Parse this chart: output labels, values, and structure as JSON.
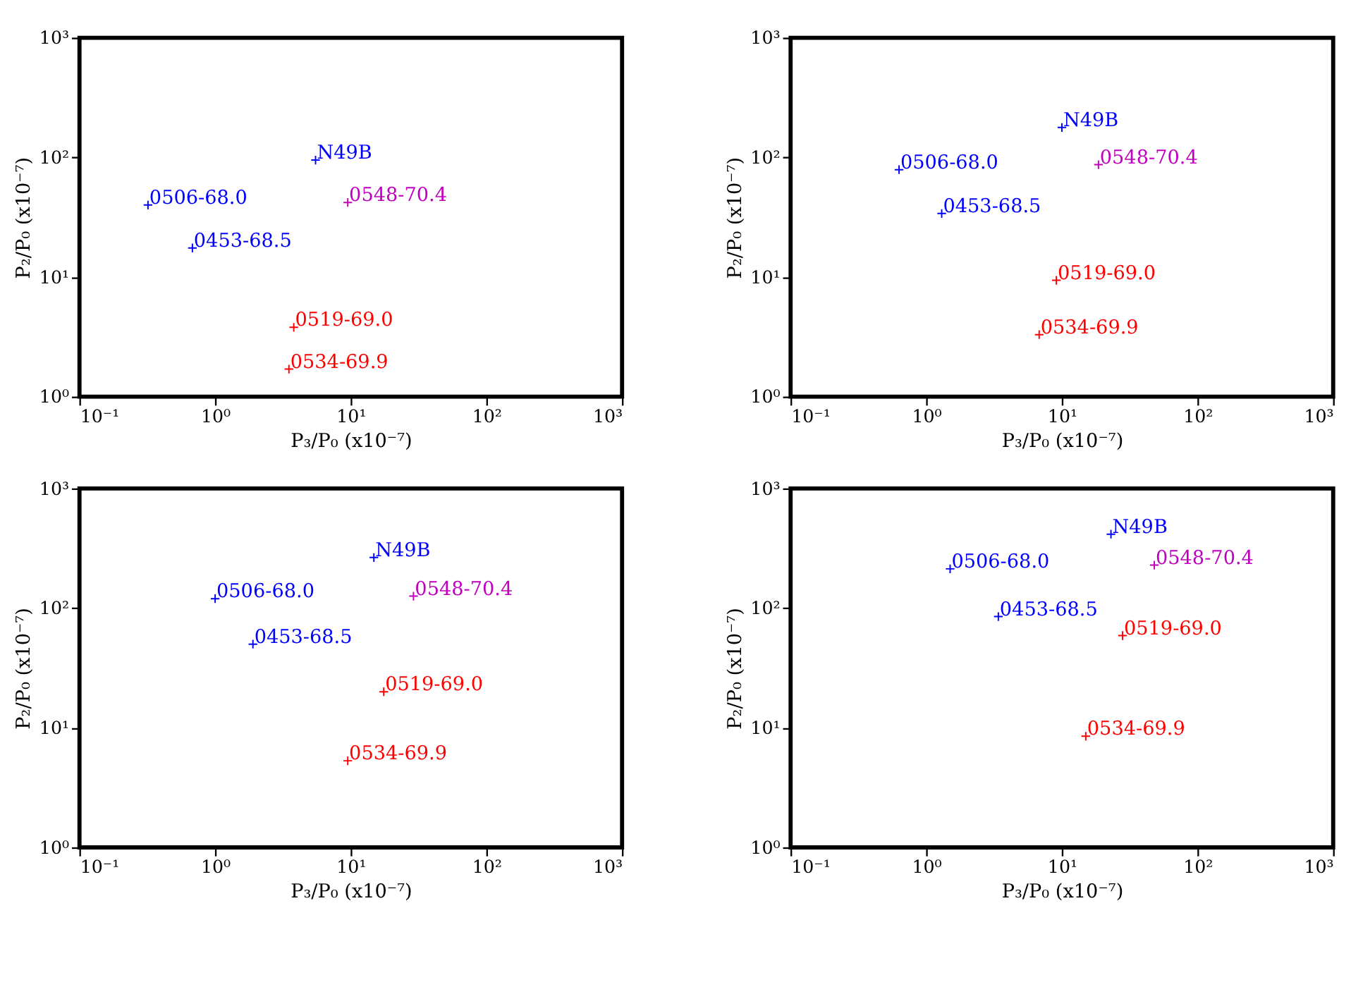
{
  "chart_data": [
    {
      "type": "scatter",
      "log": "xy",
      "grid": false,
      "marker": "cross",
      "xlabel": "P₃/P₀ (x10⁻⁷)",
      "ylabel": "P₂/P₀ (x10⁻⁷)",
      "xlim": [
        0.1,
        1000
      ],
      "ylim": [
        1,
        1000
      ],
      "xticks": [
        {
          "value": 0.1,
          "label": "10⁻¹"
        },
        {
          "value": 1,
          "label": "10⁰"
        },
        {
          "value": 10,
          "label": "10¹"
        },
        {
          "value": 100,
          "label": "10²"
        },
        {
          "value": 1000,
          "label": "10³"
        }
      ],
      "yticks": [
        {
          "value": 1,
          "label": "10⁰"
        },
        {
          "value": 10,
          "label": "10¹"
        },
        {
          "value": 100,
          "label": "10²"
        },
        {
          "value": 1000,
          "label": "10³"
        }
      ],
      "x": [
        5.5,
        0.32,
        0.68,
        9.5,
        3.8,
        3.5
      ],
      "values": [
        95,
        40,
        17.5,
        42,
        3.8,
        1.7
      ],
      "colors": [
        "#0000ff",
        "#0000ff",
        "#0000ff",
        "#bf00bf",
        "#ff0000",
        "#ff0000"
      ],
      "annotations": [
        {
          "text": "N49B",
          "x": 5.5,
          "y": 95
        },
        {
          "text": "0506-68.0",
          "x": 0.32,
          "y": 40
        },
        {
          "text": "0453-68.5",
          "x": 0.68,
          "y": 17.5
        },
        {
          "text": "0548-70.4",
          "x": 9.5,
          "y": 42
        },
        {
          "text": "0519-69.0",
          "x": 3.8,
          "y": 3.8
        },
        {
          "text": "0534-69.9",
          "x": 3.5,
          "y": 1.7
        }
      ]
    },
    {
      "type": "scatter",
      "log": "xy",
      "grid": false,
      "marker": "cross",
      "xlabel": "P₃/P₀ (x10⁻⁷)",
      "ylabel": "P₂/P₀ (x10⁻⁷)",
      "xlim": [
        0.1,
        1000
      ],
      "ylim": [
        1,
        1000
      ],
      "xticks": [
        {
          "value": 0.1,
          "label": "10⁻¹"
        },
        {
          "value": 1,
          "label": "10⁰"
        },
        {
          "value": 10,
          "label": "10¹"
        },
        {
          "value": 100,
          "label": "10²"
        },
        {
          "value": 1000,
          "label": "10³"
        }
      ],
      "yticks": [
        {
          "value": 1,
          "label": "10⁰"
        },
        {
          "value": 10,
          "label": "10¹"
        },
        {
          "value": 100,
          "label": "10²"
        },
        {
          "value": 1000,
          "label": "10³"
        }
      ],
      "x": [
        10,
        0.63,
        1.3,
        18.6,
        9.1,
        6.8
      ],
      "values": [
        178,
        79,
        34,
        87,
        9.4,
        3.3
      ],
      "colors": [
        "#0000ff",
        "#0000ff",
        "#0000ff",
        "#bf00bf",
        "#ff0000",
        "#ff0000"
      ],
      "annotations": [
        {
          "text": "N49B",
          "x": 10,
          "y": 178
        },
        {
          "text": "0506-68.0",
          "x": 0.63,
          "y": 79
        },
        {
          "text": "0453-68.5",
          "x": 1.3,
          "y": 34
        },
        {
          "text": "0548-70.4",
          "x": 18.6,
          "y": 87
        },
        {
          "text": "0519-69.0",
          "x": 9.1,
          "y": 9.4
        },
        {
          "text": "0534-69.9",
          "x": 6.8,
          "y": 3.3
        }
      ]
    },
    {
      "type": "scatter",
      "log": "xy",
      "grid": false,
      "marker": "cross",
      "xlabel": "P₃/P₀ (x10⁻⁷)",
      "ylabel": "P₂/P₀ (x10⁻⁷)",
      "xlim": [
        0.1,
        1000
      ],
      "ylim": [
        1,
        1000
      ],
      "xticks": [
        {
          "value": 0.1,
          "label": "10⁻¹"
        },
        {
          "value": 1,
          "label": "10⁰"
        },
        {
          "value": 10,
          "label": "10¹"
        },
        {
          "value": 100,
          "label": "10²"
        },
        {
          "value": 1000,
          "label": "10³"
        }
      ],
      "yticks": [
        {
          "value": 1,
          "label": "10⁰"
        },
        {
          "value": 10,
          "label": "10¹"
        },
        {
          "value": 100,
          "label": "10²"
        },
        {
          "value": 1000,
          "label": "10³"
        }
      ],
      "x": [
        14.8,
        1.0,
        1.9,
        29,
        17.5,
        9.5
      ],
      "values": [
        265,
        120,
        50,
        126,
        20,
        5.3
      ],
      "colors": [
        "#0000ff",
        "#0000ff",
        "#0000ff",
        "#bf00bf",
        "#ff0000",
        "#ff0000"
      ],
      "annotations": [
        {
          "text": "N49B",
          "x": 14.8,
          "y": 265
        },
        {
          "text": "0506-68.0",
          "x": 1.0,
          "y": 120
        },
        {
          "text": "0453-68.5",
          "x": 1.9,
          "y": 50
        },
        {
          "text": "0548-70.4",
          "x": 29,
          "y": 126
        },
        {
          "text": "0519-69.0",
          "x": 17.5,
          "y": 20
        },
        {
          "text": "0534-69.9",
          "x": 9.5,
          "y": 5.3
        }
      ]
    },
    {
      "type": "scatter",
      "log": "xy",
      "grid": false,
      "marker": "cross",
      "xlabel": "P₃/P₀ (x10⁻⁷)",
      "ylabel": "P₂/P₀ (x10⁻⁷)",
      "xlim": [
        0.1,
        1000
      ],
      "ylim": [
        1,
        1000
      ],
      "xticks": [
        {
          "value": 0.1,
          "label": "10⁻¹"
        },
        {
          "value": 1,
          "label": "10⁰"
        },
        {
          "value": 10,
          "label": "10¹"
        },
        {
          "value": 100,
          "label": "10²"
        },
        {
          "value": 1000,
          "label": "10³"
        }
      ],
      "yticks": [
        {
          "value": 1,
          "label": "10⁰"
        },
        {
          "value": 10,
          "label": "10¹"
        },
        {
          "value": 100,
          "label": "10²"
        },
        {
          "value": 1000,
          "label": "10³"
        }
      ],
      "x": [
        23,
        1.5,
        3.4,
        48,
        28,
        15
      ],
      "values": [
        415,
        213,
        85,
        229,
        59,
        8.5
      ],
      "colors": [
        "#0000ff",
        "#0000ff",
        "#0000ff",
        "#bf00bf",
        "#ff0000",
        "#ff0000"
      ],
      "annotations": [
        {
          "text": "N49B",
          "x": 23,
          "y": 415
        },
        {
          "text": "0506-68.0",
          "x": 1.5,
          "y": 213
        },
        {
          "text": "0453-68.5",
          "x": 3.4,
          "y": 85
        },
        {
          "text": "0548-70.4",
          "x": 48,
          "y": 229
        },
        {
          "text": "0519-69.0",
          "x": 28,
          "y": 59
        },
        {
          "text": "0534-69.9",
          "x": 15,
          "y": 8.5
        }
      ]
    }
  ]
}
